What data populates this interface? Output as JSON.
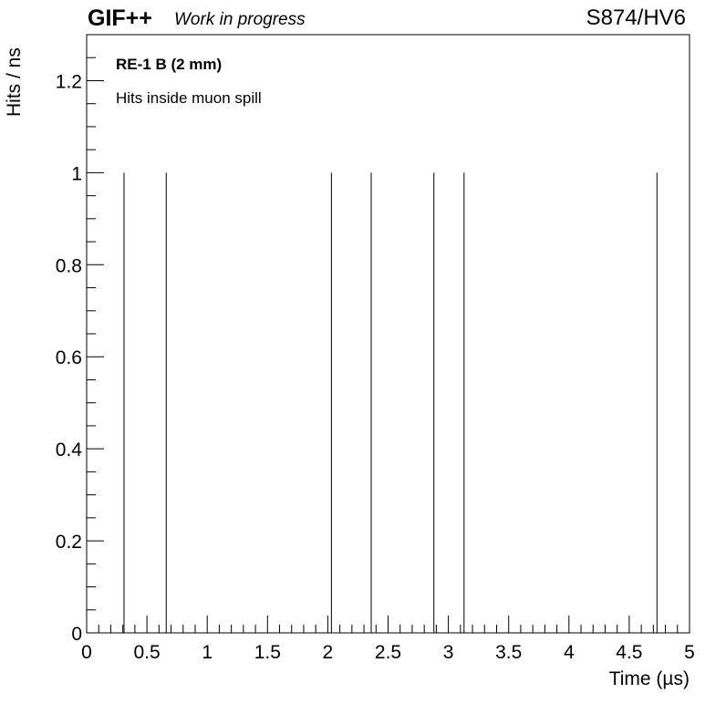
{
  "header": {
    "experiment": "GIF++",
    "status": "Work in progress",
    "run": "S874/HV6"
  },
  "chart_data": {
    "type": "bar",
    "title": "",
    "xlabel": "Time (µs)",
    "ylabel": "Hits / ns",
    "xlim": [
      0,
      5
    ],
    "ylim": [
      0,
      1.3
    ],
    "x_ticks": [
      "0",
      "0.5",
      "1",
      "1.5",
      "2",
      "2.5",
      "3",
      "3.5",
      "4",
      "4.5",
      "5"
    ],
    "y_ticks": [
      "0",
      "0.2",
      "0.4",
      "0.6",
      "0.8",
      "1",
      "1.2"
    ],
    "grid": false,
    "legend": "none",
    "annotations": [
      "RE-1 B (2 mm)",
      "Hits inside muon spill"
    ],
    "series": [
      {
        "x": [
          0.31,
          0.66,
          2.03,
          2.36,
          2.88,
          3.13,
          4.73
        ],
        "values": [
          1,
          1,
          1,
          1,
          1,
          1,
          1
        ]
      }
    ],
    "colors": {
      "line": "#000000",
      "frame": "#000000"
    }
  }
}
